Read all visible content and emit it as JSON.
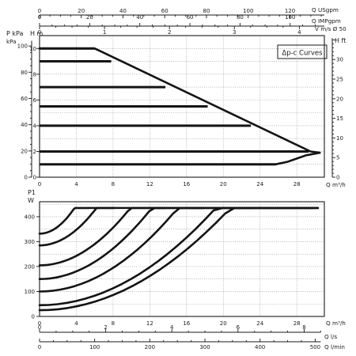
{
  "chart_data": [
    {
      "type": "line",
      "title": "",
      "legend_box": "Δp-c Curves",
      "xlabel": "Q m³/h",
      "y_left_labels": [
        "P kPa",
        "H m"
      ],
      "y_right_labels": [
        "H ft"
      ],
      "x_ticks": [
        0,
        4,
        8,
        12,
        16,
        20,
        24,
        28
      ],
      "xlim": [
        0,
        31
      ],
      "ylim_m": [
        0,
        11
      ],
      "y_ticks_m": [
        0,
        2,
        4,
        6,
        8,
        10
      ],
      "y_ticks_kpa": [
        0,
        20,
        40,
        60,
        80,
        100
      ],
      "y_ticks_ft": [
        0,
        5,
        10,
        15,
        20,
        25,
        30
      ],
      "top_axes": [
        {
          "label": "Q USgpm",
          "ticks": [
            0,
            20,
            40,
            60,
            80,
            100,
            120
          ]
        },
        {
          "label": "Q IMPgpm",
          "ticks": [
            0,
            20,
            40,
            60,
            80,
            100
          ]
        },
        {
          "label": "V m/s Ø 50",
          "ticks": [
            0,
            1,
            2,
            3,
            4
          ]
        }
      ],
      "constant_heads": [
        {
          "h": 10,
          "x_end": 6
        },
        {
          "h": 9,
          "x_end": 7.8
        },
        {
          "h": 7,
          "x_end": 13.7
        },
        {
          "h": 5.5,
          "x_end": 18.3
        },
        {
          "h": 4,
          "x_end": 23
        },
        {
          "h": 2,
          "x_end": 29.3
        },
        {
          "h": 1,
          "x_end": 25.7
        }
      ],
      "max_curve": [
        [
          0,
          10
        ],
        [
          6,
          10
        ],
        [
          6.9,
          9.7
        ],
        [
          29.5,
          2
        ],
        [
          30.5,
          1.9
        ]
      ],
      "min_curve": [
        [
          25.7,
          1
        ],
        [
          27,
          1.2
        ],
        [
          29,
          1.7
        ],
        [
          30.5,
          1.9
        ]
      ]
    },
    {
      "type": "line",
      "title": "",
      "xlabel": "Q m³/h",
      "y_left_labels": [
        "P1",
        "W"
      ],
      "x_ticks": [
        0,
        4,
        8,
        12,
        16,
        20,
        24,
        28
      ],
      "xlim": [
        0,
        31
      ],
      "ylim": [
        0,
        460
      ],
      "y_ticks": [
        0,
        100,
        200,
        300,
        400
      ],
      "bottom_axes": [
        {
          "label": "Q l/s",
          "ticks": [
            0,
            2,
            4,
            6,
            8
          ]
        },
        {
          "label": "Q l/min",
          "ticks": [
            0,
            100,
            200,
            300,
            400,
            500
          ]
        }
      ],
      "max_power": 435,
      "series": [
        {
          "p0": 332,
          "a": 7.1,
          "x_end": 5.3
        },
        {
          "p0": 285,
          "a": 3.9,
          "x_end": 8.1
        },
        {
          "p0": 205,
          "a": 2.36,
          "x_end": 13.7
        },
        {
          "p0": 150,
          "a": 1.91,
          "x_end": 17.9
        },
        {
          "p0": 100,
          "a": 1.48,
          "x_end": 22.9
        },
        {
          "p0": 45,
          "a": 1.06,
          "x_end": 29.9
        },
        {
          "p0": 25,
          "a": 0.95,
          "x_end": 30.3
        }
      ]
    }
  ]
}
